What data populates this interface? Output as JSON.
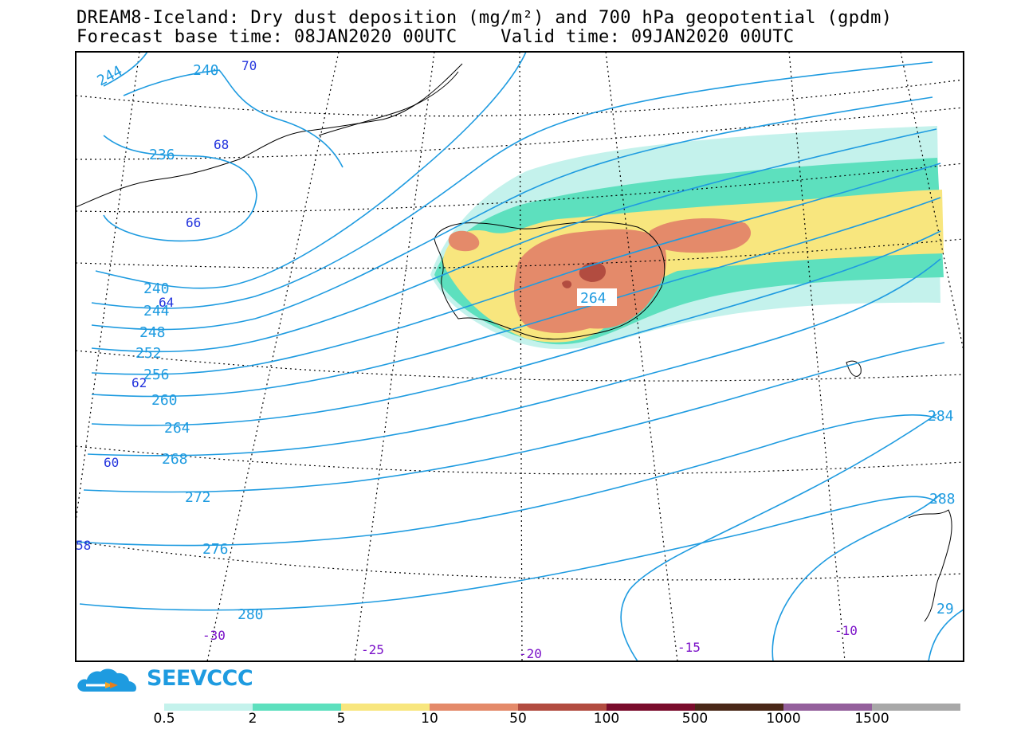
{
  "title": {
    "line1": "DREAM8-Iceland: Dry dust deposition (mg/m²) and 700 hPa geopotential (gpdm)",
    "line2": "Forecast base time: 08JAN2020 00UTC    Valid time: 09JAN2020 00UTC"
  },
  "logo": {
    "text": "SEEVCCC"
  },
  "colors": {
    "contour": "#1e9be0",
    "lat_label": "#2233dd",
    "lon_label": "#7a10c8"
  },
  "legend": {
    "colors": [
      "#c4f2ec",
      "#5de0be",
      "#f8e67e",
      "#e48a6a",
      "#b24c40",
      "#7a0c2c",
      "#4a2818",
      "#94609c",
      "#a8a8a8"
    ],
    "ticks": [
      "0.5",
      "2",
      "5",
      "10",
      "50",
      "100",
      "500",
      "1000",
      "1500"
    ]
  },
  "map": {
    "contour_labels": [
      "244",
      "240",
      "236",
      "240",
      "244",
      "248",
      "252",
      "256",
      "260",
      "264",
      "268",
      "272",
      "276",
      "280",
      "264",
      "284",
      "288",
      "29"
    ],
    "latitude_labels": [
      "70",
      "68",
      "66",
      "64",
      "62",
      "60",
      "58"
    ],
    "longitude_labels": [
      "-30",
      "-25",
      "-20",
      "-15",
      "-10"
    ]
  }
}
